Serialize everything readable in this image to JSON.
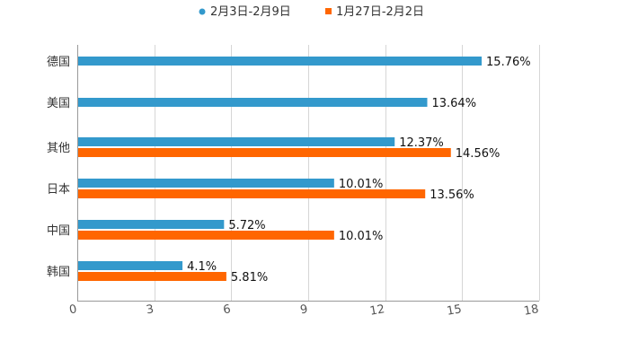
{
  "chart_data": {
    "type": "bar",
    "orientation": "horizontal",
    "categories": [
      "德国",
      "美国",
      "其他",
      "日本",
      "中国",
      "韩国"
    ],
    "series": [
      {
        "name": "2月3日-2月9日",
        "color": "#3399cc",
        "values": [
          15.76,
          13.64,
          12.37,
          10.01,
          5.72,
          4.1
        ],
        "labels": [
          "15.76%",
          "13.64%",
          "12.37%",
          "10.01%",
          "5.72%",
          "4.1%"
        ]
      },
      {
        "name": "1月27日-2月2日",
        "color": "#ff6600",
        "values": [
          null,
          null,
          14.56,
          13.56,
          10.01,
          5.81
        ],
        "labels": [
          "",
          "",
          "14.56%",
          "13.56%",
          "10.01%",
          "5.81%"
        ]
      }
    ],
    "xlim": [
      0,
      18
    ],
    "xticks": [
      "0",
      "3",
      "6",
      "9",
      "12",
      "15",
      "18"
    ],
    "grid": true,
    "legend_position": "top-center",
    "title": "",
    "xlabel": "",
    "ylabel": ""
  }
}
